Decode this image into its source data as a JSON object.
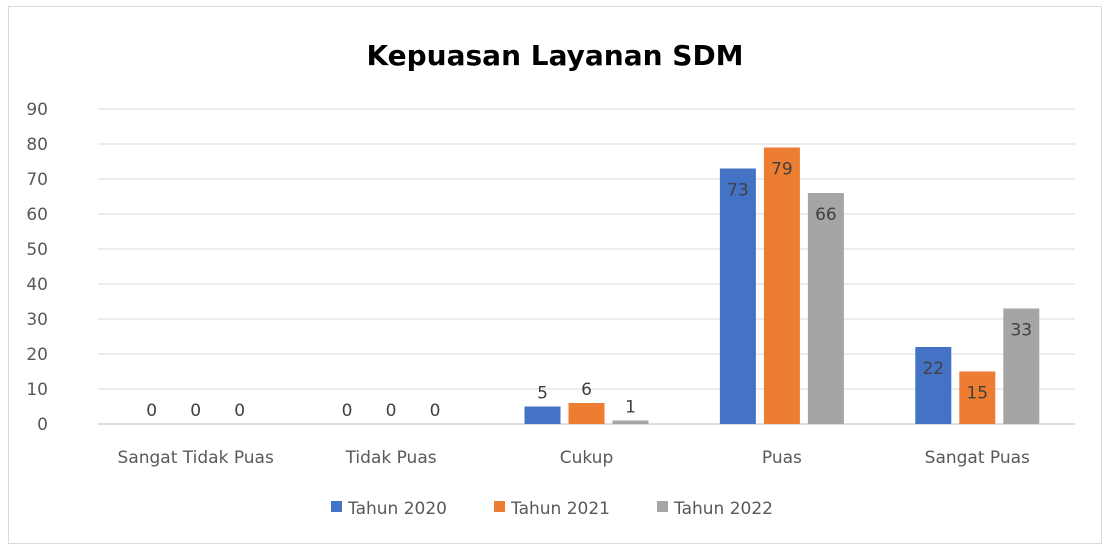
{
  "chart_data": {
    "type": "bar",
    "title": "Kepuasan Layanan  SDM",
    "xlabel": "",
    "ylabel": "",
    "ylim": [
      0,
      90
    ],
    "yticks": [
      0,
      10,
      20,
      30,
      40,
      50,
      60,
      70,
      80,
      90
    ],
    "grid": true,
    "legend_position": "bottom",
    "categories": [
      "Sangat Tidak Puas",
      "Tidak Puas",
      "Cukup",
      "Puas",
      "Sangat Puas"
    ],
    "series": [
      {
        "name": "Tahun 2020",
        "color": "#4472C4",
        "values": [
          0,
          0,
          5,
          73,
          22
        ]
      },
      {
        "name": "Tahun 2021",
        "color": "#ED7D31",
        "values": [
          0,
          0,
          6,
          79,
          15
        ]
      },
      {
        "name": "Tahun 2022",
        "color": "#A5A5A5",
        "values": [
          0,
          0,
          1,
          66,
          33
        ]
      }
    ]
  }
}
